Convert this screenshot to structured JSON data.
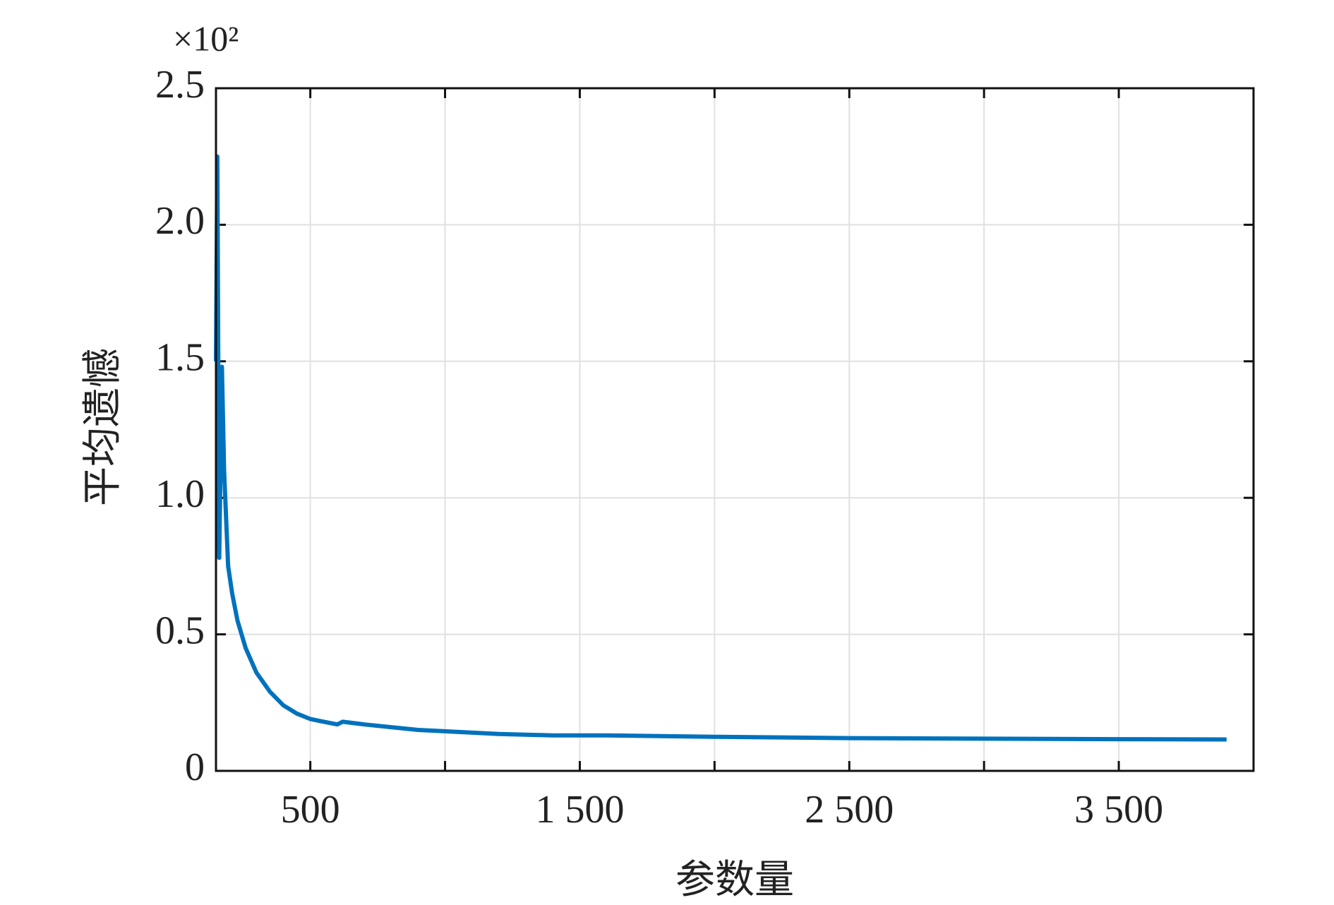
{
  "chart_data": {
    "type": "line",
    "multiplier": "×10²",
    "xlabel": "参数量",
    "ylabel": "平均遗憾",
    "x": [
      150,
      155,
      162,
      172,
      180,
      195,
      210,
      230,
      260,
      300,
      350,
      400,
      450,
      500,
      550,
      600,
      620,
      700,
      800,
      900,
      1000,
      1200,
      1400,
      1600,
      2000,
      2500,
      3000,
      3500,
      3900
    ],
    "series": [
      {
        "color": "#0072bd",
        "values": [
          1.5,
          2.25,
          0.78,
          1.48,
          1.1,
          0.75,
          0.65,
          0.55,
          0.45,
          0.36,
          0.29,
          0.24,
          0.21,
          0.19,
          0.18,
          0.17,
          0.18,
          0.17,
          0.16,
          0.15,
          0.145,
          0.135,
          0.13,
          0.13,
          0.125,
          0.12,
          0.118,
          0.116,
          0.115
        ]
      }
    ],
    "xlim": [
      150,
      4000
    ],
    "ylim": [
      0,
      2.5
    ],
    "xticks": [
      {
        "value": 500,
        "label": "500"
      },
      {
        "value": 1500,
        "label": "1 500"
      },
      {
        "value": 2500,
        "label": "2 500"
      },
      {
        "value": 3500,
        "label": "3 500"
      }
    ],
    "minor_xticks": [
      1000,
      2000,
      3000
    ],
    "yticks": [
      0,
      0.5,
      {
        "value": 1,
        "label": "1.0"
      },
      1.5,
      {
        "value": 2,
        "label": "2.0"
      },
      2.5
    ],
    "grid": true
  }
}
